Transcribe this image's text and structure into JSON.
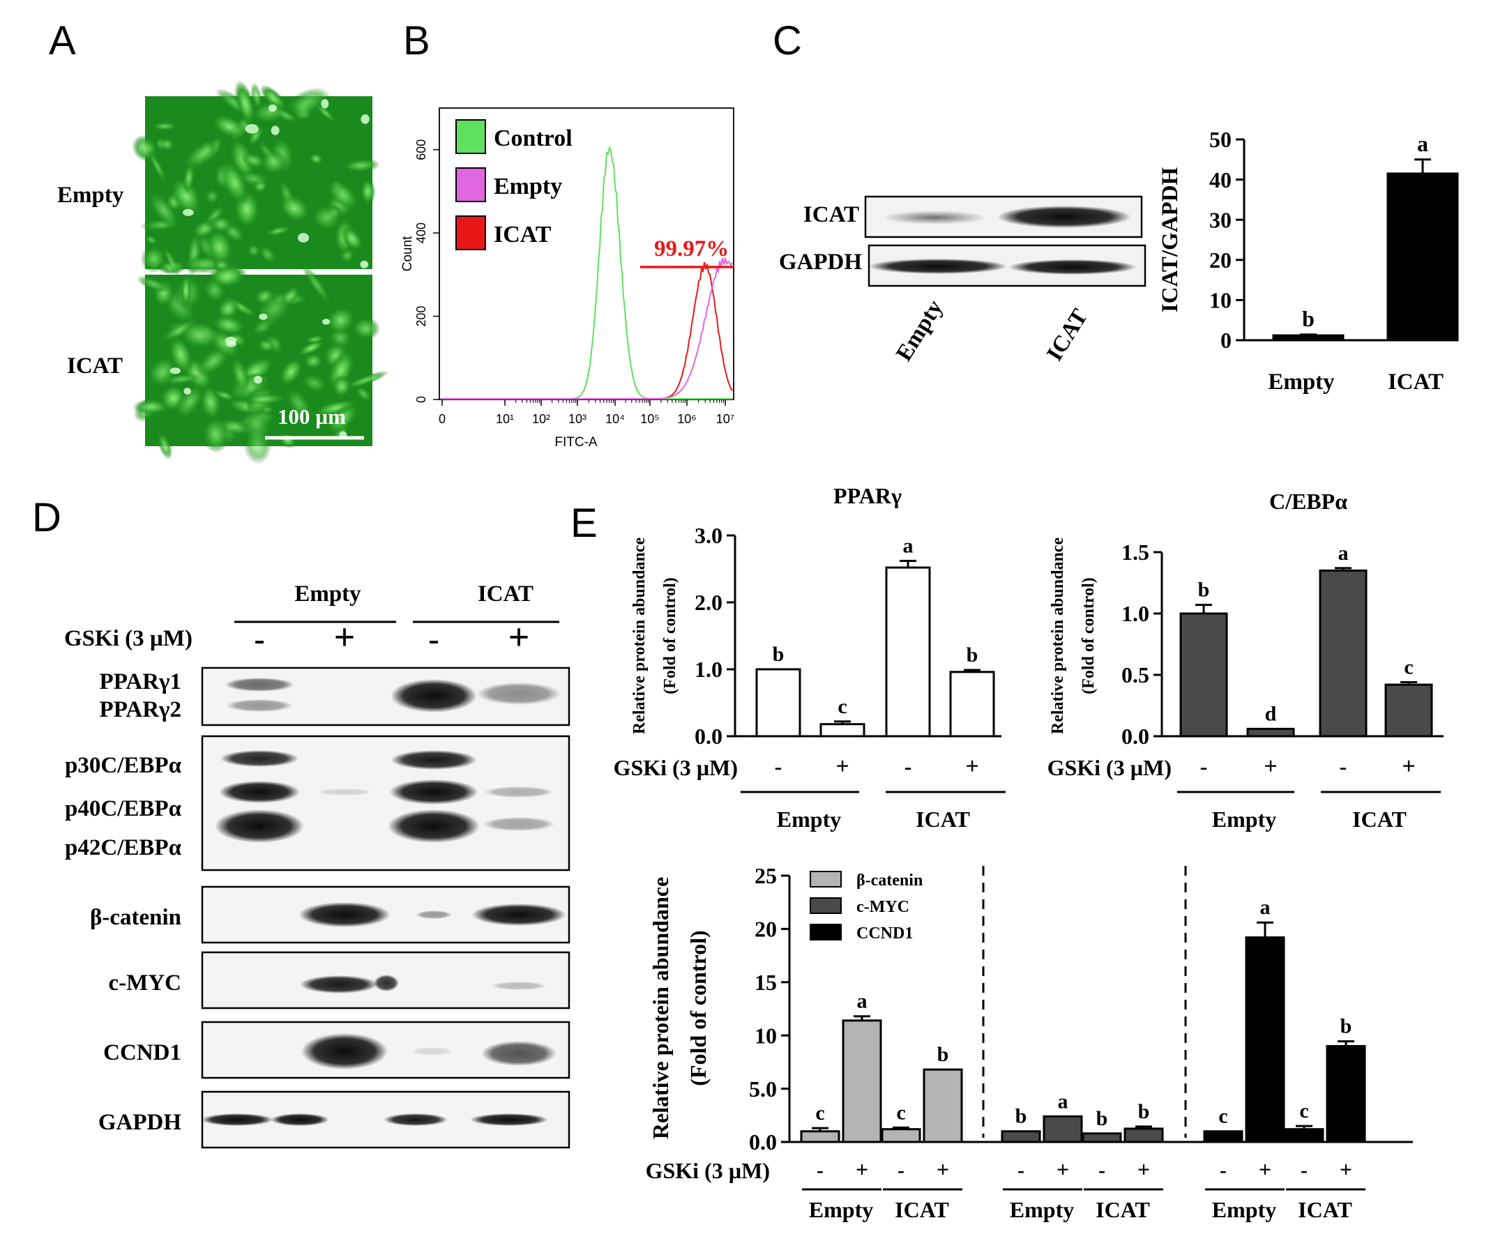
{
  "panels": {
    "A": {
      "letter": "A",
      "rows": [
        "Empty",
        "ICAT"
      ],
      "scale_bar": "100 µm"
    },
    "B": {
      "letter": "B",
      "legend": [
        {
          "label": "Control",
          "color": "#5fe05f"
        },
        {
          "label": "Empty",
          "color": "#e066e0"
        },
        {
          "label": "ICAT",
          "color": "#e81818"
        }
      ],
      "gate_label": "99.97%",
      "xlabel": "FITC-A",
      "ylabel": "Count",
      "x_ticks": [
        "0",
        "10¹",
        "10²",
        "10³",
        "10⁴",
        "10⁵",
        "10⁶",
        "10⁷"
      ],
      "y_ticks": [
        "0",
        "200",
        "400",
        "600"
      ]
    },
    "C": {
      "letter": "C",
      "blot_rows": [
        "ICAT",
        "GAPDH"
      ],
      "blot_lanes": [
        "Empty",
        "ICAT"
      ]
    },
    "D": {
      "letter": "D",
      "groups": [
        "Empty",
        "ICAT"
      ],
      "treatment_label": "GSKi (3 µM)",
      "signs": [
        "-",
        "+",
        "-",
        "+"
      ],
      "blot_rows": [
        {
          "labels": [
            "PPARγ1",
            "PPARγ2"
          ]
        },
        {
          "labels": [
            "p30C/EBPα",
            "p40C/EBPα",
            "p42C/EBPα"
          ]
        },
        {
          "labels": [
            "β-catenin"
          ]
        },
        {
          "labels": [
            "c-MYC"
          ]
        },
        {
          "labels": [
            "CCND1"
          ]
        },
        {
          "labels": [
            "GAPDH"
          ]
        }
      ]
    },
    "E": {
      "letter": "E",
      "treatment_label": "GSKi (3 µM)",
      "signs": [
        "-",
        "+",
        "-",
        "+"
      ],
      "groups": [
        "Empty",
        "ICAT"
      ]
    }
  },
  "chart_data": [
    {
      "type": "line",
      "panel": "B",
      "xlabel": "FITC-A",
      "ylabel": "Count",
      "x_scale": "log",
      "xlim": [
        "0",
        "10^7"
      ],
      "ylim": [
        0,
        700
      ],
      "series": [
        {
          "name": "Control",
          "peak_x": "10^3.9",
          "peak_count": 600
        },
        {
          "name": "Empty",
          "peak_x": "10^7",
          "peak_count": 330
        },
        {
          "name": "ICAT",
          "peak_x": "10^6.5",
          "peak_count": 320
        }
      ],
      "annotations": [
        "99.97%"
      ]
    },
    {
      "type": "bar",
      "panel": "C",
      "ylabel": "ICAT/GAPDH",
      "categories": [
        "Empty",
        "ICAT"
      ],
      "values": [
        1.2,
        41.5
      ],
      "errors": [
        0.2,
        3.5
      ],
      "letters": [
        "b",
        "a"
      ],
      "ylim": [
        0,
        50
      ],
      "y_ticks": [
        "0",
        "10",
        "20",
        "30",
        "40",
        "50"
      ]
    },
    {
      "type": "bar",
      "panel": "E",
      "title": "PPARγ",
      "ylabel": "Relative protein abundance",
      "ylabel2": "(Fold of control)",
      "categories": [
        "-",
        "+",
        "-",
        "+"
      ],
      "groups": [
        "Empty",
        "ICAT"
      ],
      "values": [
        1.0,
        0.18,
        2.52,
        0.96
      ],
      "errors": [
        0.0,
        0.04,
        0.1,
        0.03
      ],
      "letters": [
        "b",
        "c",
        "a",
        "b"
      ],
      "ylim": [
        0,
        3.0
      ],
      "y_ticks": [
        "0.0",
        "1.0",
        "2.0",
        "3.0"
      ],
      "color": "#ffffff"
    },
    {
      "type": "bar",
      "panel": "E",
      "title": "C/EBPα",
      "ylabel": "Relative protein abundance",
      "ylabel2": "(Fold of control)",
      "categories": [
        "-",
        "+",
        "-",
        "+"
      ],
      "groups": [
        "Empty",
        "ICAT"
      ],
      "values": [
        1.0,
        0.06,
        1.35,
        0.42
      ],
      "errors": [
        0.07,
        0.0,
        0.02,
        0.02
      ],
      "letters": [
        "b",
        "d",
        "a",
        "c"
      ],
      "ylim": [
        0,
        1.5
      ],
      "y_ticks": [
        "0.0",
        "0.5",
        "1.0",
        "1.5"
      ],
      "color": "#4a4a4a"
    },
    {
      "type": "bar",
      "panel": "E",
      "ylabel": "Relative protein abundance",
      "ylabel2": "(Fold of control)",
      "ylim": [
        0,
        25
      ],
      "y_ticks": [
        "0.0",
        "5.0",
        "10",
        "15",
        "20",
        "25"
      ],
      "legend": [
        {
          "label": "β-catenin",
          "color": "#b4b4b4"
        },
        {
          "label": "c-MYC",
          "color": "#4a4a4a"
        },
        {
          "label": "CCND1",
          "color": "#000000"
        }
      ],
      "series": [
        {
          "name": "β-catenin",
          "values": [
            1.0,
            11.4,
            1.2,
            6.8
          ],
          "errors": [
            0.3,
            0.4,
            0.15,
            0.0
          ],
          "letters": [
            "c",
            "a",
            "c",
            "b"
          ]
        },
        {
          "name": "c-MYC",
          "values": [
            1.0,
            2.4,
            0.8,
            1.25
          ],
          "errors": [
            0.0,
            0.0,
            0.0,
            0.2
          ],
          "letters": [
            "b",
            "a",
            "b",
            "b"
          ]
        },
        {
          "name": "CCND1",
          "values": [
            1.0,
            19.2,
            1.2,
            9.0
          ],
          "errors": [
            0.0,
            1.4,
            0.3,
            0.45
          ],
          "letters": [
            "c",
            "a",
            "c",
            "b"
          ]
        }
      ]
    }
  ]
}
